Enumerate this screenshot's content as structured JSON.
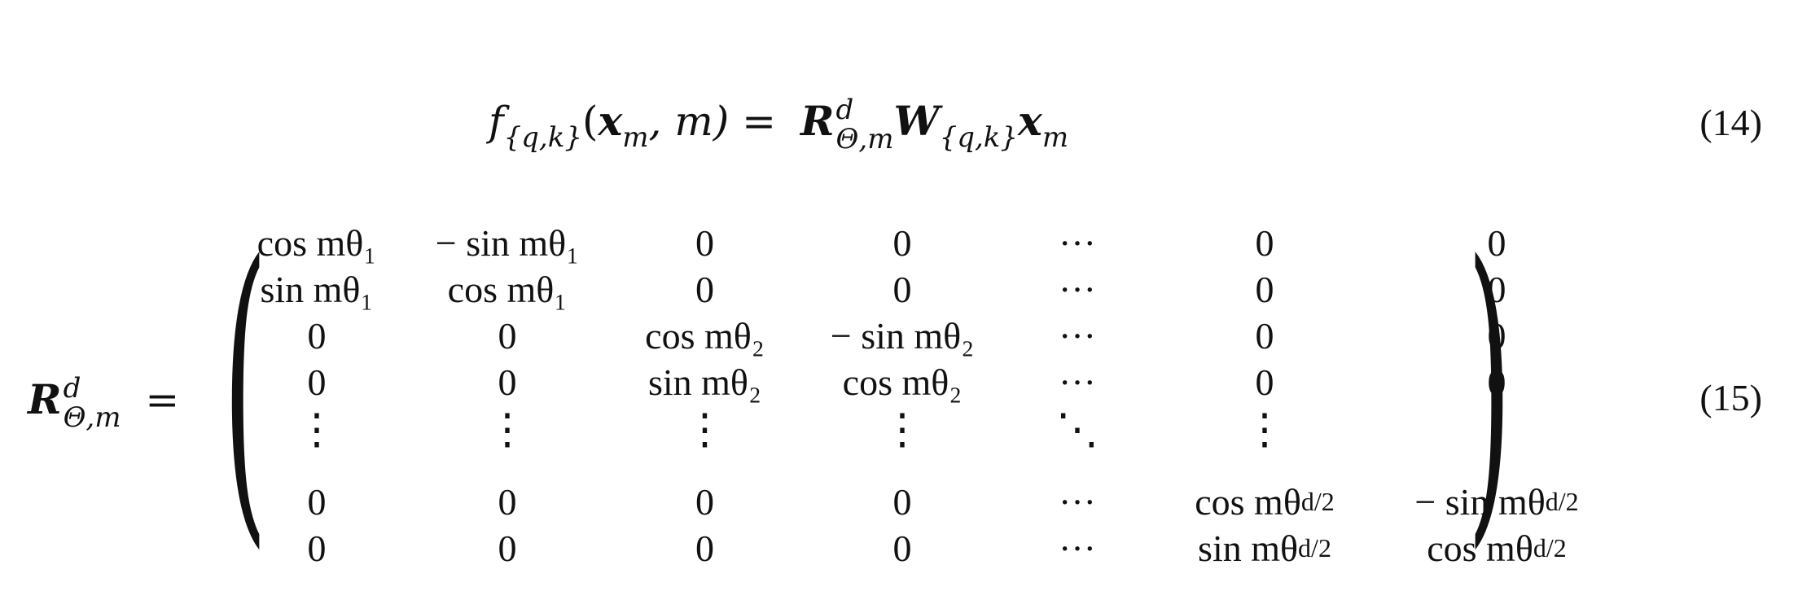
{
  "equations": [
    {
      "number": "(14)",
      "lhs": {
        "f": "f",
        "f_sub": "{q,k}",
        "open": "(",
        "x": "x",
        "x_sub": "m",
        "rest": ", m) ="
      },
      "rhs": {
        "R": "R",
        "R_sup": "d",
        "R_sub": "Θ,m",
        "W": "W",
        "W_sub": "{q,k}",
        "x": "x",
        "x_sub": "m"
      }
    },
    {
      "number": "(15)",
      "lhs": {
        "R": "R",
        "R_sup": "d",
        "R_sub": "Θ,m",
        "eq": "="
      },
      "matrix": [
        [
          "cos mθ₁",
          "− sin mθ₁",
          "0",
          "0",
          "···",
          "0",
          "0"
        ],
        [
          "sin mθ₁",
          "cos mθ₁",
          "0",
          "0",
          "···",
          "0",
          "0"
        ],
        [
          "0",
          "0",
          "cos mθ₂",
          "− sin mθ₂",
          "···",
          "0",
          "0"
        ],
        [
          "0",
          "0",
          "sin mθ₂",
          "cos mθ₂",
          "···",
          "0",
          "0"
        ],
        [
          "⋮",
          "⋮",
          "⋮",
          "⋮",
          "⋱",
          "⋮",
          "⋮"
        ],
        [
          "0",
          "0",
          "0",
          "0",
          "···",
          "cos mθ_{d/2}",
          "− sin mθ_{d/2}"
        ],
        [
          "0",
          "0",
          "0",
          "0",
          "···",
          "sin mθ_{d/2}",
          "cos mθ_{d/2}"
        ]
      ]
    }
  ]
}
